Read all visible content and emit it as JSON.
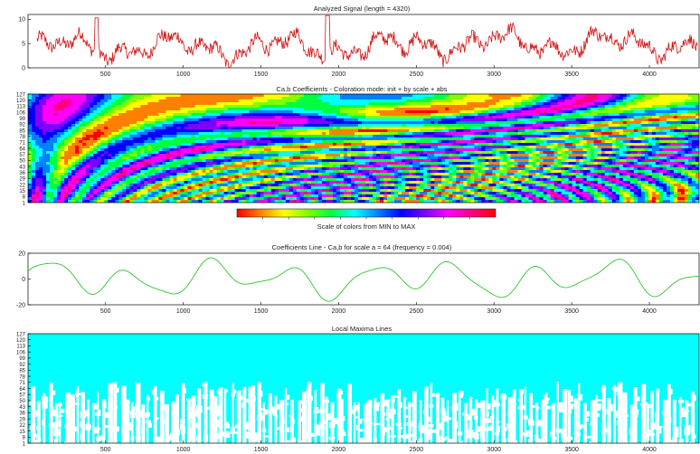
{
  "colors": {
    "signal": "#d21414",
    "coef_line": "#2ec42e",
    "maxima_bg": "#00ffff",
    "maxima_fg": "#ffffff",
    "axis": "#000000"
  },
  "chart_data": [
    {
      "type": "line",
      "name": "analyzed-signal",
      "title": "Analyzed Signal (length = 4320)",
      "xlim": [
        1,
        4320
      ],
      "ylim": [
        0,
        11
      ],
      "xticks": [
        "500",
        "1000",
        "1500",
        "2000",
        "2500",
        "3000",
        "3500",
        "4000"
      ],
      "xtick_values": [
        500,
        1000,
        1500,
        2000,
        2500,
        3000,
        3500,
        4000
      ],
      "yticks": [
        "0",
        "5",
        "10"
      ],
      "ytick_values": [
        0,
        5,
        10
      ],
      "color": "#d21414",
      "length": 4320
    },
    {
      "type": "heatmap",
      "name": "cab-coefficients",
      "title": "Ca,b Coefficients - Coloration mode: init + by scale + abs",
      "xlim": [
        1,
        4320
      ],
      "ylim": [
        1,
        127
      ],
      "yticks": [
        "1",
        "8",
        "15",
        "22",
        "29",
        "36",
        "43",
        "50",
        "57",
        "64",
        "71",
        "78",
        "85",
        "92",
        "99",
        "106",
        "113",
        "120",
        "127"
      ],
      "ytick_values": [
        1,
        8,
        15,
        22,
        29,
        36,
        43,
        50,
        57,
        64,
        71,
        78,
        85,
        92,
        99,
        106,
        113,
        120,
        127
      ],
      "colorbar_label": "Scale of colors from MIN to MAX",
      "colorbar_colors": [
        "#ff0000",
        "#ff8000",
        "#ffff00",
        "#80ff00",
        "#00ff40",
        "#00ffff",
        "#0080ff",
        "#0000ff",
        "#8000ff",
        "#ff00ff",
        "#ff0080",
        "#ff0000"
      ]
    },
    {
      "type": "line",
      "name": "coefficients-line",
      "title": "Coefficients Line - Ca,b for scale a = 64  (frequency =   0.004)",
      "xlim": [
        1,
        4320
      ],
      "ylim": [
        -20,
        20
      ],
      "xticks": [
        "500",
        "1000",
        "1500",
        "2000",
        "2500",
        "3000",
        "3500",
        "4000"
      ],
      "xtick_values": [
        500,
        1000,
        1500,
        2000,
        2500,
        3000,
        3500,
        4000
      ],
      "yticks": [
        "-20",
        "0",
        "20"
      ],
      "ytick_values": [
        -20,
        0,
        20
      ],
      "color": "#2ec42e",
      "scale": 64,
      "frequency": 0.004
    },
    {
      "type": "heatmap",
      "name": "local-maxima-lines",
      "title": "Local Maxima Lines",
      "xlim": [
        1,
        4320
      ],
      "ylim": [
        1,
        127
      ],
      "xticks": [
        "500",
        "1000",
        "1500",
        "2000",
        "2500",
        "3000",
        "3500",
        "4000"
      ],
      "xtick_values": [
        500,
        1000,
        1500,
        2000,
        2500,
        3000,
        3500,
        4000
      ],
      "yticks": [
        "1",
        "8",
        "15",
        "22",
        "29",
        "36",
        "43",
        "50",
        "57",
        "64",
        "71",
        "78",
        "85",
        "92",
        "99",
        "106",
        "113",
        "120",
        "127"
      ],
      "ytick_values": [
        1,
        8,
        15,
        22,
        29,
        36,
        43,
        50,
        57,
        64,
        71,
        78,
        85,
        92,
        99,
        106,
        113,
        120,
        127
      ],
      "color": "#00ffff"
    }
  ]
}
